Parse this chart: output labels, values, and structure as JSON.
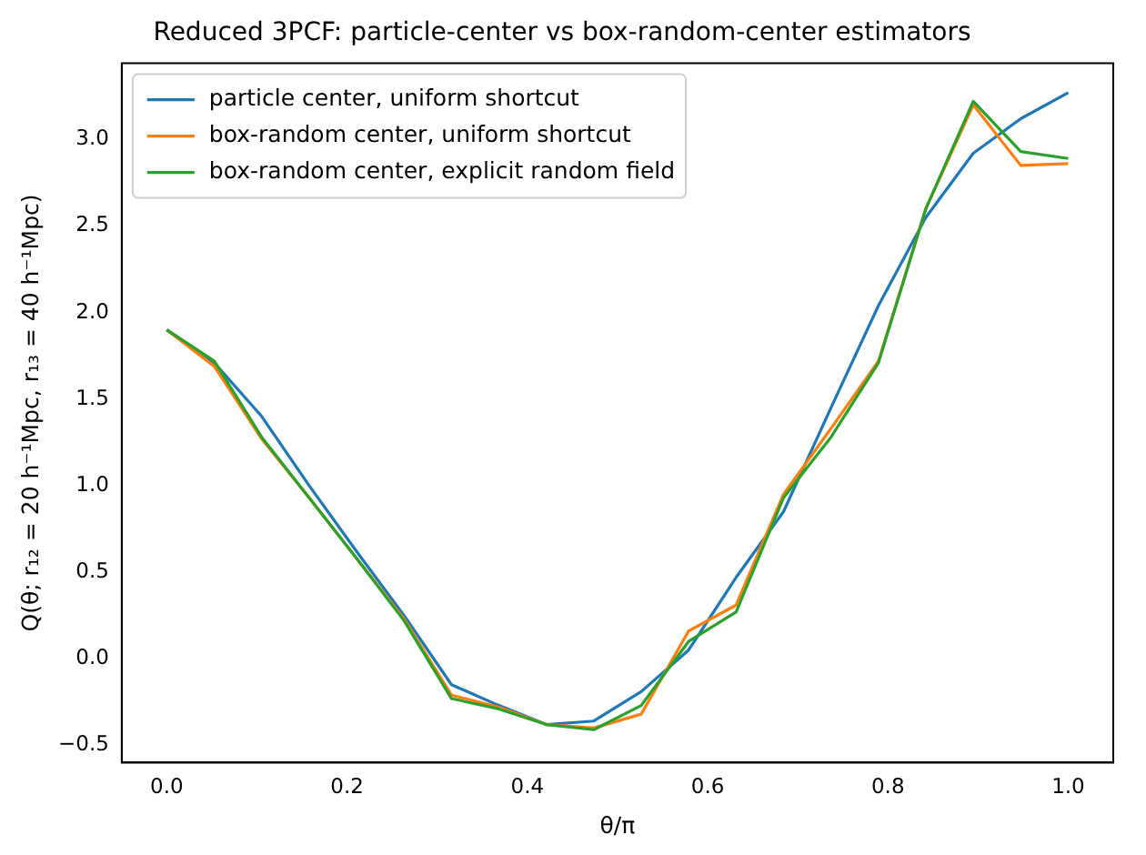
{
  "chart_data": {
    "type": "line",
    "title": "Reduced 3PCF: particle-center vs box-random-center estimators",
    "xlabel": "θ/π",
    "ylabel": "Q(θ; r₁₂ = 20 h⁻¹Mpc, r₁₃ = 40 h⁻¹Mpc)",
    "x": [
      0,
      0.0526,
      0.1053,
      0.1579,
      0.2105,
      0.2632,
      0.3158,
      0.3684,
      0.4211,
      0.4737,
      0.5263,
      0.5789,
      0.6316,
      0.6842,
      0.7368,
      0.7895,
      0.8421,
      0.8947,
      0.9474,
      1
    ],
    "series": [
      {
        "name": "particle center, uniform shortcut",
        "color": "#1f77b4",
        "values": [
          1.9,
          1.71,
          1.4,
          1.0,
          0.62,
          0.25,
          -0.15,
          -0.27,
          -0.38,
          -0.36,
          -0.19,
          0.05,
          0.47,
          0.85,
          1.45,
          2.04,
          2.55,
          2.92,
          3.12,
          3.27
        ]
      },
      {
        "name": "box-random center, uniform shortcut",
        "color": "#ff7f0e",
        "values": [
          1.9,
          1.69,
          1.27,
          0.93,
          0.58,
          0.23,
          -0.21,
          -0.28,
          -0.38,
          -0.4,
          -0.32,
          0.16,
          0.31,
          0.95,
          1.33,
          1.72,
          2.6,
          3.2,
          2.85,
          2.86
        ]
      },
      {
        "name": "box-random center, explicit random field",
        "color": "#2ca02c",
        "values": [
          1.9,
          1.72,
          1.28,
          0.93,
          0.58,
          0.22,
          -0.23,
          -0.29,
          -0.38,
          -0.41,
          -0.27,
          0.1,
          0.27,
          0.93,
          1.28,
          1.71,
          2.6,
          3.22,
          2.93,
          2.89
        ]
      }
    ],
    "xlim": [
      -0.05,
      1.05
    ],
    "ylim": [
      -0.6,
      3.44
    ],
    "xticks": [
      {
        "value": 0,
        "label": "0.0"
      },
      {
        "value": 0.2,
        "label": "0.2"
      },
      {
        "value": 0.4,
        "label": "0.4"
      },
      {
        "value": 0.6,
        "label": "0.6"
      },
      {
        "value": 0.8,
        "label": "0.8"
      },
      {
        "value": 1,
        "label": "1.0"
      }
    ],
    "yticks": [
      {
        "value": -0.5,
        "label": "−0.5"
      },
      {
        "value": 0,
        "label": "0.0"
      },
      {
        "value": 0.5,
        "label": "0.5"
      },
      {
        "value": 1,
        "label": "1.0"
      },
      {
        "value": 1.5,
        "label": "1.5"
      },
      {
        "value": 2,
        "label": "2.0"
      },
      {
        "value": 2.5,
        "label": "2.5"
      },
      {
        "value": 3,
        "label": "3.0"
      }
    ],
    "legend": "top left",
    "grid": false,
    "marker": "none",
    "line_style": "solid"
  }
}
